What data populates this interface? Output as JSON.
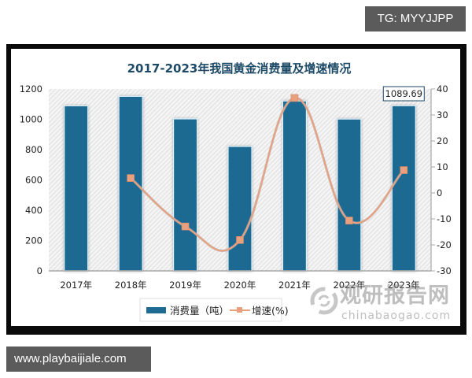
{
  "badges": {
    "top": "TG: MYYJJPP",
    "bottom": "www.playbaijiale.com"
  },
  "colors": {
    "bar": "#1f6b92",
    "bar_edge": "#dff3ff",
    "line": "#e8a07f",
    "marker": "#e8a07f",
    "title": "#1d4a66",
    "frame": "#0a0a0a",
    "badge": "#5b5b5b"
  },
  "watermark": {
    "cn": "观研报告网",
    "en": "chinabaogao.com",
    "icon": "swirl-logo-icon"
  },
  "chart_data": {
    "type": "bar",
    "title": "2017-2023年我国黄金消费量及增速情况",
    "categories": [
      "2017年",
      "2018年",
      "2019年",
      "2020年",
      "2021年",
      "2022年",
      "2023年"
    ],
    "series": [
      {
        "name": "消费量（吨）",
        "type": "bar",
        "axis": "left",
        "values": [
          1089.07,
          1151.43,
          1002.78,
          820.98,
          1120.9,
          1001.74,
          1089.69
        ]
      },
      {
        "name": "增速(%)",
        "type": "line",
        "axis": "right",
        "values": [
          null,
          5.73,
          -12.91,
          -18.13,
          36.53,
          -10.63,
          8.78
        ]
      }
    ],
    "xlabel": "",
    "ylabel": "",
    "ylim": [
      0,
      1200
    ],
    "yticks": [
      0,
      200,
      400,
      600,
      800,
      1000,
      1200
    ],
    "y2lim": [
      -30,
      40
    ],
    "y2ticks": [
      -30,
      -20,
      -10,
      0,
      10,
      20,
      30,
      40
    ],
    "annotations": [
      {
        "category": "2023年",
        "text": "1089.69"
      }
    ],
    "legend": {
      "position": "bottom",
      "items": [
        "消费量（吨）",
        "增速(%)"
      ]
    },
    "grid": false,
    "background": "diagonal-hatch"
  }
}
